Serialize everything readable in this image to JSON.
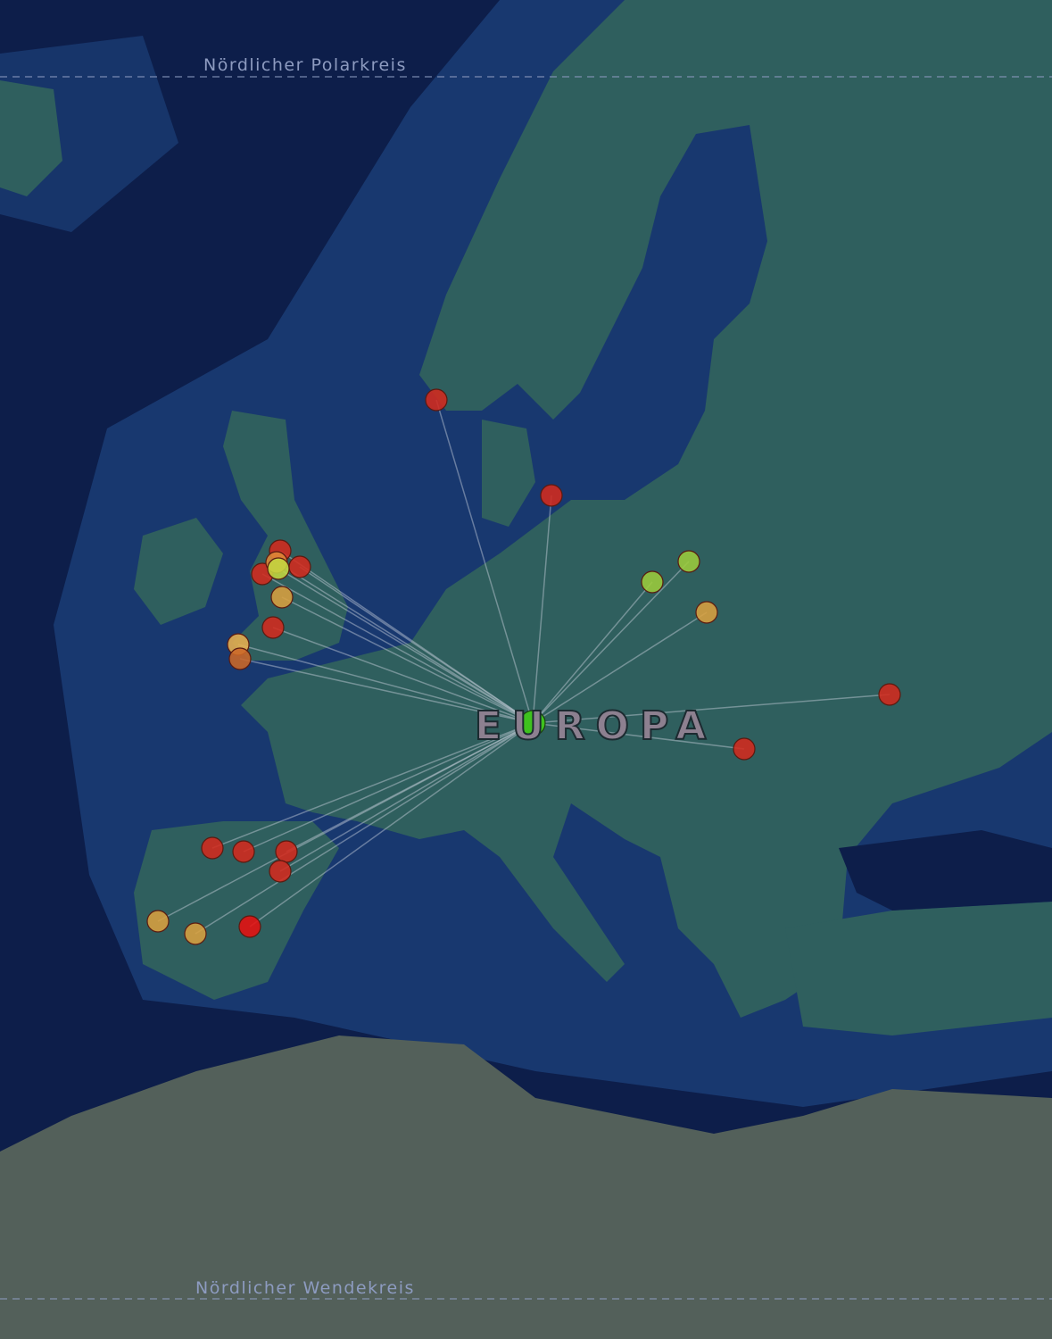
{
  "labels": {
    "arctic_circle": "Nördlicher Polarkreis",
    "tropic": "Nördlicher Wendekreis",
    "region": "EUROPA"
  },
  "colors": {
    "ocean_deep": "#0d1e4a",
    "ocean_shelf": "#1c3f78",
    "land": "#2f5f5e",
    "desert": "#53605a",
    "connection_line": "#c8d0dc",
    "hub": "#3ec21e"
  },
  "hub": {
    "color": "#3ec21e"
  },
  "markers": [
    {
      "color": "#d42a1e"
    },
    {
      "color": "#d42a1e"
    },
    {
      "color": "#d42a1e"
    },
    {
      "color": "#d42a1e"
    },
    {
      "color": "#d42a1e"
    },
    {
      "color": "#e08a38"
    },
    {
      "color": "#c4d640"
    },
    {
      "color": "#d9a040"
    },
    {
      "color": "#d42a1e"
    },
    {
      "color": "#e8b050"
    },
    {
      "color": "#cc6828"
    },
    {
      "color": "#9ccc3c"
    },
    {
      "color": "#9ccc3c"
    },
    {
      "color": "#d9a040"
    },
    {
      "color": "#d42a1e"
    },
    {
      "color": "#d42a1e"
    },
    {
      "color": "#d42a1e"
    },
    {
      "color": "#d42a1e"
    },
    {
      "color": "#d42a1e"
    },
    {
      "color": "#d42a1e"
    },
    {
      "color": "#d9a040"
    },
    {
      "color": "#d9a040"
    },
    {
      "color": "#e81010"
    }
  ]
}
